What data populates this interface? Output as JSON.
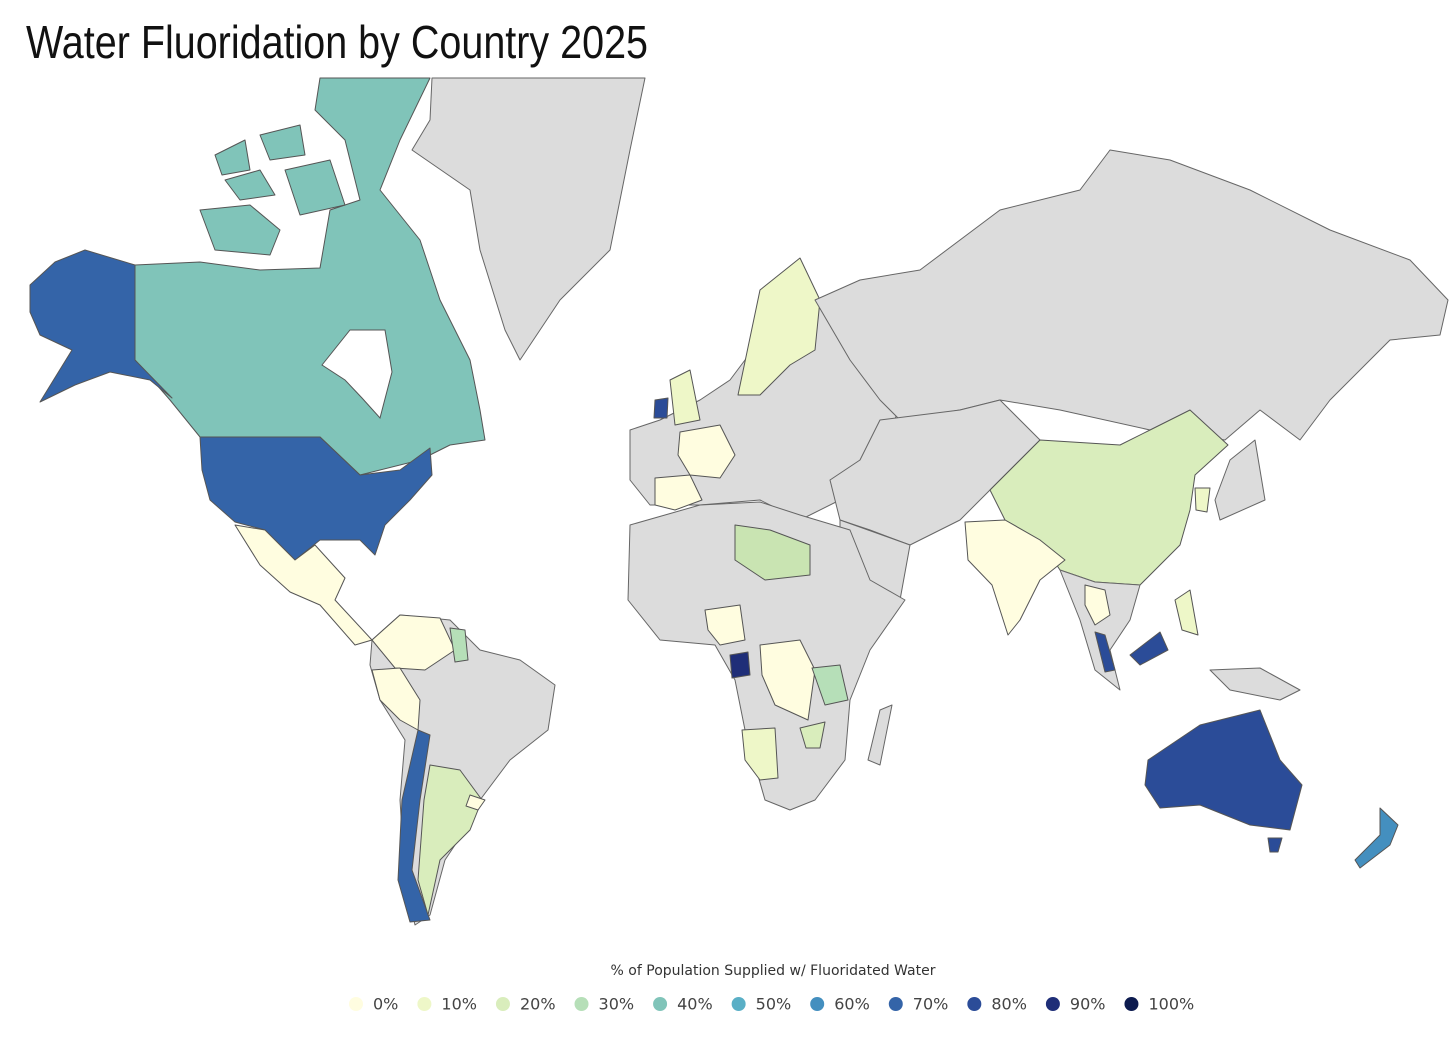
{
  "title": "Water Fluoridation by Country 2025",
  "legend": {
    "title": "% of Population Supplied w/ Fluoridated Water",
    "items": [
      {
        "value": 0,
        "label": "0%",
        "color": "#fffde0"
      },
      {
        "value": 10,
        "label": "10%",
        "color": "#eef7c8"
      },
      {
        "value": 20,
        "label": "20%",
        "color": "#d9edbc"
      },
      {
        "value": 30,
        "label": "30%",
        "color": "#b6dfb8"
      },
      {
        "value": 40,
        "label": "40%",
        "color": "#80c4b9"
      },
      {
        "value": 50,
        "label": "50%",
        "color": "#5aafc6"
      },
      {
        "value": 60,
        "label": "60%",
        "color": "#448fbf"
      },
      {
        "value": 70,
        "label": "70%",
        "color": "#3464a8"
      },
      {
        "value": 80,
        "label": "80%",
        "color": "#2b4c98"
      },
      {
        "value": 90,
        "label": "90%",
        "color": "#1f2e78"
      },
      {
        "value": 100,
        "label": "100%",
        "color": "#0d1b4f"
      }
    ]
  }
}
